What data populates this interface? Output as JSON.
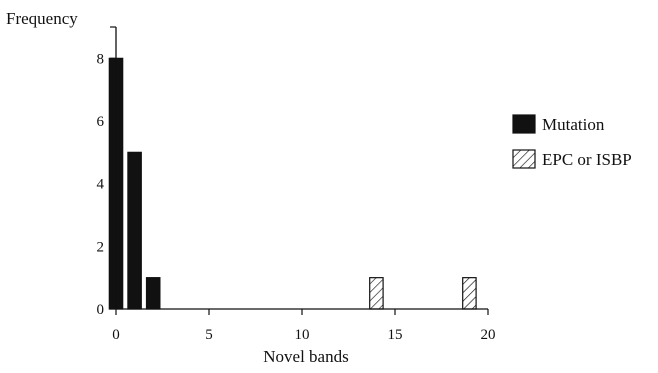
{
  "chart_data": {
    "type": "bar",
    "title": "",
    "xlabel": "Novel bands",
    "ylabel": "Frequency",
    "xlim": [
      0,
      20
    ],
    "ylim": [
      0,
      9
    ],
    "x_ticks": [
      0,
      5,
      10,
      15,
      20
    ],
    "y_ticks": [
      0,
      2,
      4,
      6,
      8
    ],
    "grid": false,
    "legend_position": "right",
    "series": [
      {
        "name": "Mutation",
        "fill": "solid",
        "color": "#111111",
        "points": [
          {
            "x": 0,
            "y": 8
          },
          {
            "x": 1,
            "y": 5
          },
          {
            "x": 2,
            "y": 1
          }
        ]
      },
      {
        "name": "EPC or ISBP",
        "fill": "hatched",
        "color": "#111111",
        "points": [
          {
            "x": 14,
            "y": 1
          },
          {
            "x": 19,
            "y": 1
          }
        ]
      }
    ]
  }
}
